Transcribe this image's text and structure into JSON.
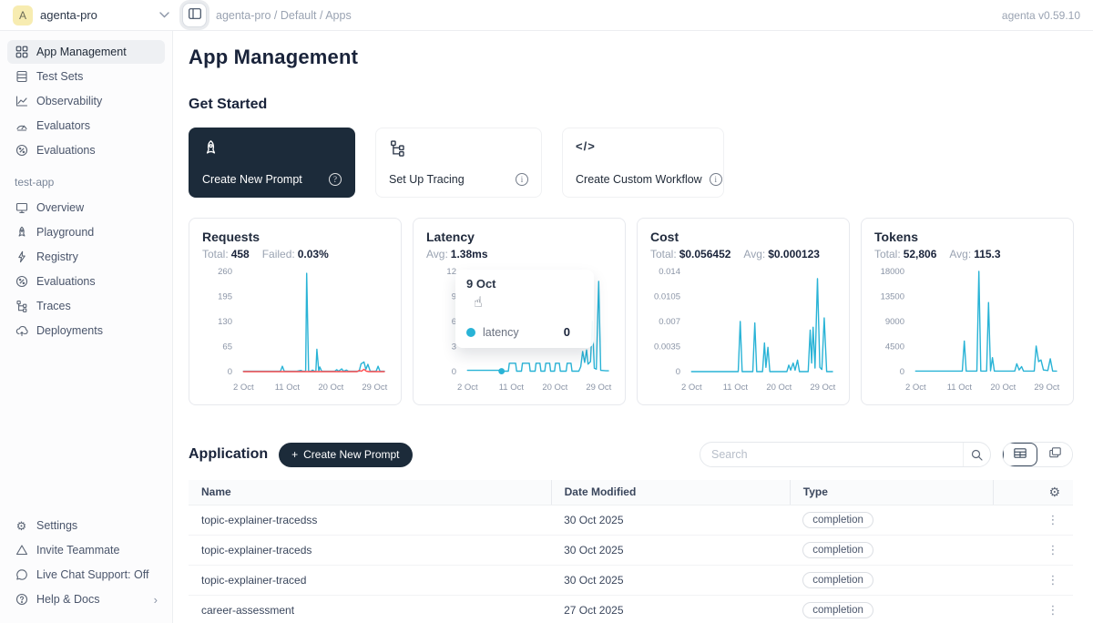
{
  "icons": {
    "gear": "⚙",
    "kebab": "⋮",
    "chevron_right": "›",
    "plus": "+",
    "pointer": "☝",
    "question": "?",
    "code": "</>"
  },
  "colors": {
    "accent": "#29b3d6",
    "danger": "#ff4d4f",
    "dark": "#1c2b3a"
  },
  "topbar": {
    "avatar_letter": "A",
    "workspace": "agenta-pro",
    "breadcrumb": "agenta-pro / Default / Apps",
    "version": "agenta v0.59.10"
  },
  "sidebar": {
    "main_items": [
      {
        "label": "App Management"
      },
      {
        "label": "Test Sets"
      },
      {
        "label": "Observability"
      },
      {
        "label": "Evaluators"
      },
      {
        "label": "Evaluations"
      }
    ],
    "section_label": "test-app",
    "app_items": [
      {
        "label": "Overview"
      },
      {
        "label": "Playground"
      },
      {
        "label": "Registry"
      },
      {
        "label": "Evaluations"
      },
      {
        "label": "Traces"
      },
      {
        "label": "Deployments"
      }
    ],
    "footer_items": [
      {
        "label": "Settings"
      },
      {
        "label": "Invite Teammate"
      },
      {
        "label": "Live Chat Support: Off"
      },
      {
        "label": "Help & Docs"
      }
    ]
  },
  "main": {
    "title": "App Management",
    "get_started": {
      "heading": "Get Started",
      "cards": [
        {
          "label": "Create New Prompt"
        },
        {
          "label": "Set Up Tracing"
        },
        {
          "label": "Create Custom Workflow"
        }
      ]
    },
    "application": {
      "heading": "Application",
      "create_button_label": "Create New Prompt",
      "search_placeholder": "Search",
      "table": {
        "columns": [
          "Name",
          "Date Modified",
          "Type"
        ],
        "rows": [
          {
            "name": "topic-explainer-tracedss",
            "date": "30 Oct 2025",
            "type": "completion"
          },
          {
            "name": "topic-explainer-traceds",
            "date": "30 Oct 2025",
            "type": "completion"
          },
          {
            "name": "topic-explainer-traced",
            "date": "30 Oct 2025",
            "type": "completion"
          },
          {
            "name": "career-assessment",
            "date": "27 Oct 2025",
            "type": "completion"
          }
        ]
      }
    }
  },
  "latency_tooltip": {
    "date": "9 Oct",
    "series": "latency",
    "value": "0"
  },
  "chart_data": [
    {
      "type": "line",
      "title": "Requests",
      "stats": [
        {
          "label": "Total:",
          "value": "458"
        },
        {
          "label": "Failed:",
          "value": "0.03%"
        }
      ],
      "ymax": 260,
      "yticks": [
        {
          "v": 0,
          "label": "0"
        },
        {
          "v": 65,
          "label": "65"
        },
        {
          "v": 130,
          "label": "130"
        },
        {
          "v": 195,
          "label": "195"
        },
        {
          "v": 260,
          "label": "260"
        }
      ],
      "xticks": [
        {
          "day": 2,
          "label": "2 Oct"
        },
        {
          "day": 11,
          "label": "11 Oct"
        },
        {
          "day": 20,
          "label": "20 Oct"
        },
        {
          "day": 29,
          "label": "29 Oct"
        }
      ],
      "xlabel": "",
      "ylabel": "",
      "grid": false,
      "legend": "none",
      "series": [
        {
          "name": "requests",
          "color": "#29b3d6",
          "points": [
            [
              2,
              1
            ],
            [
              9,
              1
            ],
            [
              9.6,
              1
            ],
            [
              10,
              14
            ],
            [
              10.4,
              1
            ],
            [
              13,
              1
            ],
            [
              13.8,
              3
            ],
            [
              14.2,
              1
            ],
            [
              14.8,
              1
            ],
            [
              15,
              255
            ],
            [
              15.4,
              1
            ],
            [
              15.9,
              1
            ],
            [
              16.2,
              4
            ],
            [
              16.6,
              1
            ],
            [
              16.9,
              1
            ],
            [
              17.1,
              58
            ],
            [
              17.5,
              1
            ],
            [
              17.7,
              12
            ],
            [
              18.1,
              1
            ],
            [
              20.8,
              1
            ],
            [
              21.2,
              5
            ],
            [
              21.6,
              1
            ],
            [
              22.2,
              7
            ],
            [
              22.6,
              1
            ],
            [
              23.2,
              4
            ],
            [
              23.6,
              1
            ],
            [
              25.8,
              1
            ],
            [
              26.2,
              20
            ],
            [
              26.8,
              25
            ],
            [
              27.2,
              6
            ],
            [
              27.6,
              19
            ],
            [
              28.1,
              1
            ],
            [
              29.3,
              1
            ],
            [
              29.7,
              14
            ],
            [
              30.1,
              1
            ],
            [
              31,
              1
            ]
          ]
        },
        {
          "name": "failed",
          "color": "#ff4d4f",
          "points": [
            [
              2,
              0
            ],
            [
              25.4,
              0
            ],
            [
              25.8,
              3
            ],
            [
              26.3,
              1
            ],
            [
              26.8,
              6
            ],
            [
              27.3,
              1
            ],
            [
              27.8,
              0
            ],
            [
              31,
              0
            ]
          ]
        }
      ]
    },
    {
      "type": "line",
      "title": "Latency",
      "stats": [
        {
          "label": "Avg:",
          "value": "1.38ms"
        }
      ],
      "ymax": 12,
      "yticks": [
        {
          "v": 0,
          "label": "0"
        },
        {
          "v": 3,
          "label": "3"
        },
        {
          "v": 6,
          "label": "6"
        },
        {
          "v": 9,
          "label": "9"
        },
        {
          "v": 12,
          "label": "12"
        }
      ],
      "xticks": [
        {
          "day": 2,
          "label": "2 Oct"
        },
        {
          "day": 11,
          "label": "11 Oct"
        },
        {
          "day": 20,
          "label": "20 Oct"
        },
        {
          "day": 29,
          "label": "29 Oct"
        }
      ],
      "xlabel": "",
      "ylabel": "",
      "grid": false,
      "legend": "tooltip",
      "active_dot": {
        "day": 9,
        "value": 0.05
      },
      "series": [
        {
          "name": "latency",
          "color": "#29b3d6",
          "points": [
            [
              2,
              0.15
            ],
            [
              8.6,
              0.15
            ],
            [
              9,
              0.05
            ],
            [
              10.4,
              0.05
            ],
            [
              10.6,
              1
            ],
            [
              11.9,
              1
            ],
            [
              12.1,
              0.05
            ],
            [
              13.1,
              0.05
            ],
            [
              13.3,
              1
            ],
            [
              14.7,
              1
            ],
            [
              14.9,
              0.05
            ],
            [
              15.9,
              0.05
            ],
            [
              16.1,
              1
            ],
            [
              16.9,
              1
            ],
            [
              17.1,
              0.05
            ],
            [
              17.9,
              0.05
            ],
            [
              18.1,
              1
            ],
            [
              18.9,
              1
            ],
            [
              19.1,
              0.05
            ],
            [
              19.9,
              0.05
            ],
            [
              20.1,
              1
            ],
            [
              20.9,
              1
            ],
            [
              21.1,
              0.05
            ],
            [
              22.3,
              0.05
            ],
            [
              22.5,
              1
            ],
            [
              23.3,
              1
            ],
            [
              23.5,
              0.05
            ],
            [
              24.9,
              0.05
            ],
            [
              25.3,
              0.6
            ],
            [
              25.7,
              2.4
            ],
            [
              26.1,
              1.1
            ],
            [
              26.5,
              2.6
            ],
            [
              26.8,
              0.9
            ],
            [
              27.3,
              1.2
            ],
            [
              27.7,
              6
            ],
            [
              28.1,
              0.4
            ],
            [
              28.5,
              0.3
            ],
            [
              29,
              10.8
            ],
            [
              29.4,
              0.15
            ],
            [
              30.5,
              0.1
            ],
            [
              31,
              0.1
            ]
          ]
        }
      ]
    },
    {
      "type": "line",
      "title": "Cost",
      "stats": [
        {
          "label": "Total:",
          "value": "$0.056452"
        },
        {
          "label": "Avg:",
          "value": "$0.000123"
        }
      ],
      "ymax": 0.014,
      "yticks": [
        {
          "v": 0,
          "label": "0"
        },
        {
          "v": 0.0035,
          "label": "0.0035"
        },
        {
          "v": 0.007,
          "label": "0.007"
        },
        {
          "v": 0.0105,
          "label": "0.0105"
        },
        {
          "v": 0.014,
          "label": "0.014"
        }
      ],
      "xticks": [
        {
          "day": 2,
          "label": "2 Oct"
        },
        {
          "day": 11,
          "label": "11 Oct"
        },
        {
          "day": 20,
          "label": "20 Oct"
        },
        {
          "day": 29,
          "label": "29 Oct"
        }
      ],
      "xlabel": "",
      "ylabel": "",
      "grid": false,
      "legend": "none",
      "series": [
        {
          "name": "cost",
          "color": "#29b3d6",
          "points": [
            [
              2,
              0
            ],
            [
              11.6,
              0
            ],
            [
              12,
              0.007
            ],
            [
              12.4,
              0
            ],
            [
              14.6,
              0
            ],
            [
              15,
              0.0068
            ],
            [
              15.4,
              0
            ],
            [
              16.6,
              0
            ],
            [
              17,
              0.004
            ],
            [
              17.3,
              0.0006
            ],
            [
              17.7,
              0.0034
            ],
            [
              18.1,
              0
            ],
            [
              21.6,
              0
            ],
            [
              22,
              0.0009
            ],
            [
              22.4,
              0.0002
            ],
            [
              22.9,
              0.0012
            ],
            [
              23.3,
              0.0002
            ],
            [
              23.8,
              0.0016
            ],
            [
              24.2,
              0
            ],
            [
              26,
              0
            ],
            [
              26.4,
              0.0058
            ],
            [
              26.7,
              0.0012
            ],
            [
              27,
              0.0062
            ],
            [
              27.4,
              0.0005
            ],
            [
              27.9,
              0.013
            ],
            [
              28.4,
              0.0006
            ],
            [
              28.8,
              0.0003
            ],
            [
              29.3,
              0.0075
            ],
            [
              29.8,
              0
            ],
            [
              31,
              0
            ]
          ]
        }
      ]
    },
    {
      "type": "line",
      "title": "Tokens",
      "stats": [
        {
          "label": "Total:",
          "value": "52,806"
        },
        {
          "label": "Avg:",
          "value": "115.3"
        }
      ],
      "ymax": 18000,
      "yticks": [
        {
          "v": 0,
          "label": "0"
        },
        {
          "v": 4500,
          "label": "4500"
        },
        {
          "v": 9000,
          "label": "9000"
        },
        {
          "v": 13500,
          "label": "13500"
        },
        {
          "v": 18000,
          "label": "18000"
        }
      ],
      "xticks": [
        {
          "day": 2,
          "label": "2 Oct"
        },
        {
          "day": 11,
          "label": "11 Oct"
        },
        {
          "day": 20,
          "label": "20 Oct"
        },
        {
          "day": 29,
          "label": "29 Oct"
        }
      ],
      "xlabel": "",
      "ylabel": "",
      "grid": false,
      "legend": "none",
      "series": [
        {
          "name": "tokens",
          "color": "#29b3d6",
          "points": [
            [
              2,
              100
            ],
            [
              11.6,
              100
            ],
            [
              12,
              5500
            ],
            [
              12.4,
              100
            ],
            [
              14.6,
              100
            ],
            [
              15,
              18000
            ],
            [
              15.4,
              100
            ],
            [
              16.6,
              100
            ],
            [
              17,
              12400
            ],
            [
              17.4,
              150
            ],
            [
              17.8,
              2500
            ],
            [
              18.2,
              100
            ],
            [
              22.4,
              100
            ],
            [
              22.8,
              1400
            ],
            [
              23.3,
              300
            ],
            [
              23.8,
              900
            ],
            [
              24.2,
              100
            ],
            [
              26.4,
              100
            ],
            [
              26.8,
              4600
            ],
            [
              27.3,
              1800
            ],
            [
              27.8,
              2100
            ],
            [
              28.3,
              300
            ],
            [
              29.2,
              200
            ],
            [
              29.7,
              2300
            ],
            [
              30.2,
              100
            ],
            [
              31,
              100
            ]
          ]
        }
      ]
    }
  ]
}
